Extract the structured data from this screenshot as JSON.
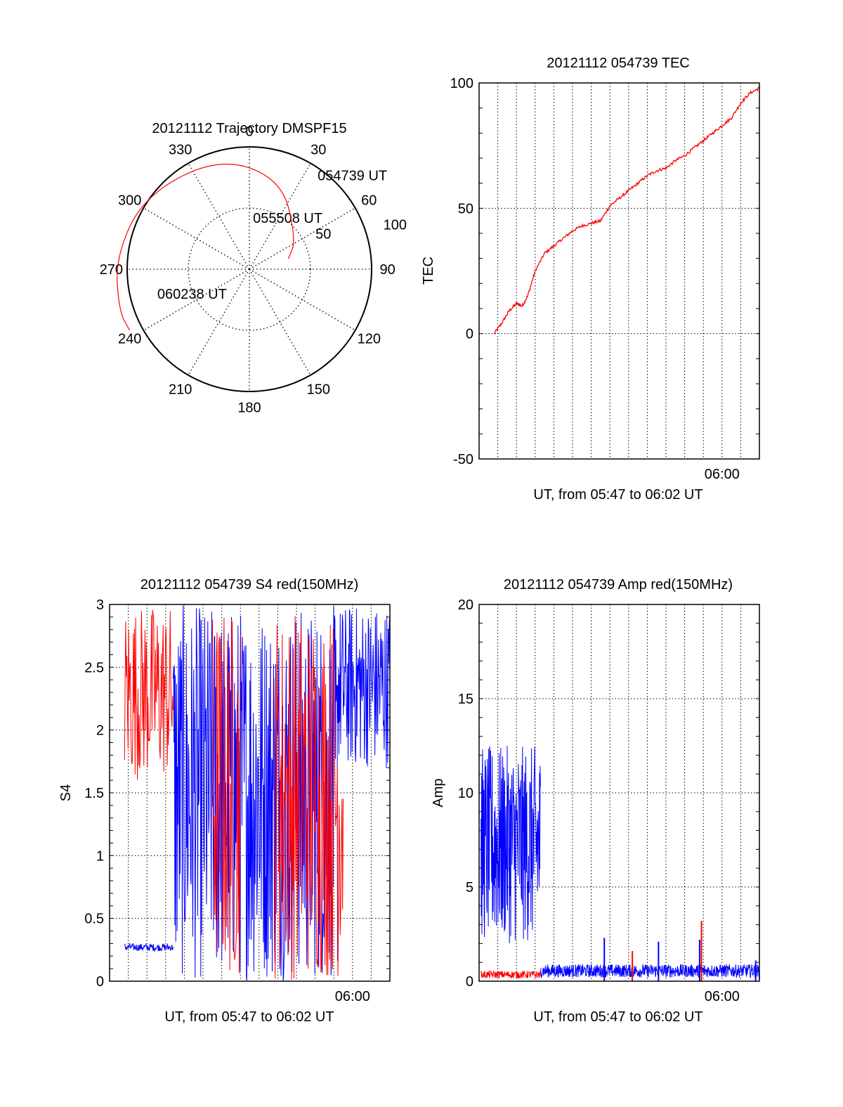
{
  "chart_data": [
    {
      "id": "trajectory",
      "type": "polar",
      "title": "20121112 Trajectory DMSPF15",
      "azimuth_labels": [
        "0",
        "30",
        "60",
        "90",
        "120",
        "150",
        "180",
        "210",
        "240",
        "270",
        "300",
        "330"
      ],
      "radial_labels": [
        "50",
        "100"
      ],
      "grid": true,
      "series": [
        {
          "color": "#ff0000",
          "points": [
            [
              75,
              33
            ],
            [
              58,
              45
            ],
            [
              20,
              78
            ],
            [
              -15,
              95
            ],
            [
              -55,
              105
            ],
            [
              -85,
              110
            ],
            [
              -108,
              112
            ],
            [
              -117,
              110
            ]
          ]
        }
      ],
      "annotations": [
        {
          "text": "054739 UT",
          "az": 36,
          "r": 95
        },
        {
          "text": "055508 UT",
          "az": 4,
          "r": 42
        },
        {
          "text": "060238 UT",
          "az": -105,
          "r": 78
        }
      ]
    },
    {
      "id": "tec",
      "type": "line",
      "title": "20121112 054739 TEC",
      "xlabel": "UT, from 05:47 to 06:02 UT",
      "ylabel": "TEC",
      "xlim": [
        0,
        15
      ],
      "ylim": [
        -50,
        100
      ],
      "yticks": [
        "-50",
        "0",
        "50",
        "100"
      ],
      "xtick_label": "06:00",
      "grid": true,
      "series": [
        {
          "color": "#ff0000",
          "x": [
            0.8,
            1.2,
            1.6,
            2.0,
            2.3,
            2.6,
            3.0,
            3.5,
            4.0,
            4.5,
            5.0,
            5.5,
            6.0,
            6.5,
            7.0,
            7.5,
            8.0,
            8.5,
            9.0,
            9.5,
            10.0,
            10.5,
            11.0,
            11.5,
            12.0,
            12.5,
            13.0,
            13.5,
            14.0,
            14.5,
            15.0
          ],
          "y": [
            0,
            4,
            9,
            12,
            11,
            15,
            25,
            32,
            35,
            38,
            41,
            43,
            44,
            45,
            51,
            54,
            57,
            60,
            63,
            65,
            66,
            69,
            71,
            74,
            77,
            80,
            83,
            86,
            92,
            96,
            98
          ]
        }
      ]
    },
    {
      "id": "s4",
      "type": "line",
      "title": "20121112 054739 S4 red(150MHz)",
      "xlabel": "UT, from 05:47 to 06:02 UT",
      "ylabel": "S4",
      "xlim": [
        0,
        15
      ],
      "ylim": [
        0,
        3
      ],
      "yticks": [
        "0",
        "0.5",
        "1",
        "1.5",
        "2",
        "2.5",
        "3"
      ],
      "xtick_label": "06:00",
      "grid": true,
      "series": [
        {
          "color": "#0000ff",
          "segments": [
            {
              "x": [
                0.8,
                3.4
              ],
              "range": [
                0.24,
                0.3
              ]
            },
            {
              "x": [
                3.4,
                12.2
              ],
              "range": [
                0,
                3
              ]
            },
            {
              "x": [
                12.2,
                15.0
              ],
              "range": [
                1.7,
                3
              ]
            }
          ]
        },
        {
          "color": "#ff0000",
          "segments": [
            {
              "x": [
                0.8,
                3.4
              ],
              "range": [
                1.6,
                3
              ]
            },
            {
              "x": [
                5.5,
                7.0
              ],
              "range": [
                0,
                3
              ]
            },
            {
              "x": [
                8.8,
                12.5
              ],
              "range": [
                0,
                3
              ]
            }
          ]
        }
      ]
    },
    {
      "id": "amp",
      "type": "line",
      "title": "20121112 054739 Amp red(150MHz)",
      "xlabel": "UT, from 05:47 to 06:02 UT",
      "ylabel": "Amp",
      "xlim": [
        0,
        15
      ],
      "ylim": [
        0,
        20
      ],
      "yticks": [
        "0",
        "5",
        "10",
        "15",
        "20"
      ],
      "xtick_label": "06:00",
      "grid": true,
      "series": [
        {
          "color": "#0000ff",
          "segments": [
            {
              "x": [
                0.1,
                3.3
              ],
              "range": [
                2.0,
                12.5
              ]
            },
            {
              "x": [
                3.3,
                15.0
              ],
              "range": [
                0.2,
                0.9
              ]
            }
          ],
          "spikes": [
            {
              "x": 6.7,
              "y": 2.3
            },
            {
              "x": 9.6,
              "y": 2.1
            },
            {
              "x": 11.8,
              "y": 2.2
            },
            {
              "x": 14.8,
              "y": 1.1
            }
          ]
        },
        {
          "color": "#ff0000",
          "segments": [
            {
              "x": [
                0.1,
                3.3
              ],
              "range": [
                0.15,
                0.55
              ]
            }
          ],
          "spikes": [
            {
              "x": 8.2,
              "y": 1.6
            },
            {
              "x": 11.9,
              "y": 3.2
            }
          ]
        }
      ]
    }
  ]
}
